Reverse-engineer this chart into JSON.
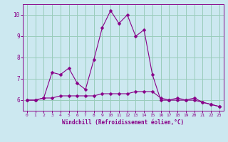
{
  "xlabel": "Windchill (Refroidissement éolien,°C)",
  "background_color": "#cce8f0",
  "line_color": "#880088",
  "x_hours": [
    0,
    1,
    2,
    3,
    4,
    5,
    6,
    7,
    8,
    9,
    10,
    11,
    12,
    13,
    14,
    15,
    16,
    17,
    18,
    19,
    20,
    21,
    22,
    23
  ],
  "y_temp": [
    6.0,
    6.0,
    6.1,
    7.3,
    7.2,
    7.5,
    6.8,
    6.5,
    7.9,
    9.4,
    10.2,
    9.6,
    10.0,
    9.0,
    9.3,
    7.2,
    6.0,
    6.0,
    6.1,
    6.0,
    6.1,
    5.9,
    5.8,
    5.7
  ],
  "y_windchill": [
    6.0,
    6.0,
    6.1,
    6.1,
    6.2,
    6.2,
    6.2,
    6.2,
    6.2,
    6.3,
    6.3,
    6.3,
    6.3,
    6.4,
    6.4,
    6.4,
    6.1,
    6.0,
    6.0,
    6.0,
    6.0,
    5.9,
    5.8,
    5.7
  ],
  "ylim": [
    5.5,
    10.5
  ],
  "yticks": [
    6,
    7,
    8,
    9,
    10
  ],
  "xlim": [
    -0.5,
    23.5
  ],
  "grid_color": "#99ccbb",
  "markersize": 2.5
}
